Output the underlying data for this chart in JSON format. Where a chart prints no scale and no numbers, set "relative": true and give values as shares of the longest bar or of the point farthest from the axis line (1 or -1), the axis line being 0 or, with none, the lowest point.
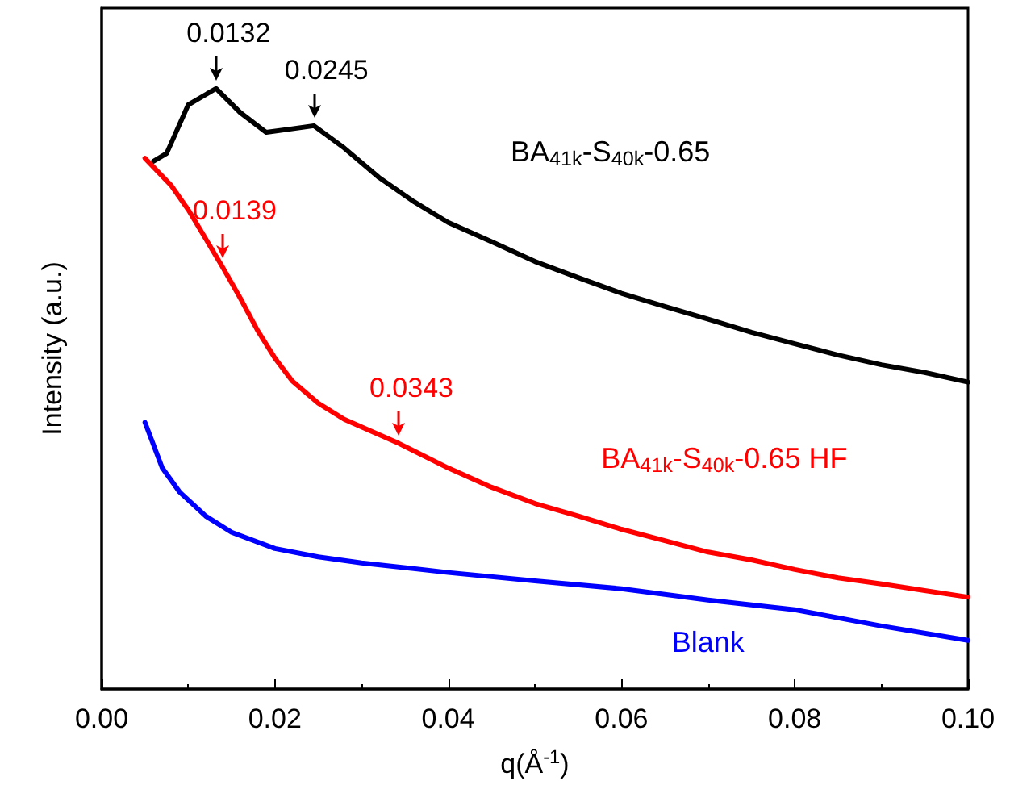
{
  "chart_data": {
    "type": "line",
    "relative": true,
    "xlabel": "q(Å$^{-1}$)",
    "ylabel": "Intensity (a.u.)",
    "xlim": [
      0,
      0.1
    ],
    "xticks": [
      {
        "value": 0,
        "label": "0.00"
      },
      {
        "value": 0.02,
        "label": "0.02"
      },
      {
        "value": 0.04,
        "label": "0.04"
      },
      {
        "value": 0.06,
        "label": "0.06"
      },
      {
        "value": 0.08,
        "label": "0.08"
      },
      {
        "value": 0.1,
        "label": "0.10"
      }
    ],
    "grid": false,
    "legend": false,
    "marker": "none",
    "line_style": "solid",
    "series": [
      {
        "name": "BA$_{41k}$-S$_{40k}$-0.65",
        "color": "#000000",
        "x": [
          0.006,
          0.0075,
          0.01,
          0.0132,
          0.016,
          0.019,
          0.022,
          0.0245,
          0.028,
          0.032,
          0.036,
          0.04,
          0.045,
          0.05,
          0.055,
          0.06,
          0.065,
          0.07,
          0.075,
          0.08,
          0.085,
          0.09,
          0.095,
          0.1
        ],
        "values": [
          0.879,
          0.892,
          0.973,
          1,
          0.96,
          0.927,
          0.933,
          0.938,
          0.901,
          0.852,
          0.812,
          0.777,
          0.745,
          0.712,
          0.685,
          0.659,
          0.637,
          0.616,
          0.594,
          0.575,
          0.556,
          0.54,
          0.527,
          0.511
        ]
      },
      {
        "name": "BA$_{41k}$-S$_{40k}$-0.65 HF",
        "color": "#ff0000",
        "x": [
          0.005,
          0.008,
          0.01,
          0.012,
          0.0139,
          0.016,
          0.018,
          0.02,
          0.022,
          0.025,
          0.028,
          0.0343,
          0.04,
          0.045,
          0.05,
          0.055,
          0.06,
          0.065,
          0.07,
          0.075,
          0.08,
          0.085,
          0.09,
          0.095,
          0.1
        ],
        "values": [
          0.884,
          0.839,
          0.798,
          0.75,
          0.704,
          0.651,
          0.597,
          0.551,
          0.513,
          0.476,
          0.449,
          0.409,
          0.368,
          0.336,
          0.309,
          0.288,
          0.266,
          0.247,
          0.228,
          0.215,
          0.199,
          0.185,
          0.175,
          0.164,
          0.153
        ]
      },
      {
        "name": "Blank",
        "color": "#0000ff",
        "x": [
          0.005,
          0.007,
          0.009,
          0.012,
          0.015,
          0.02,
          0.025,
          0.03,
          0.04,
          0.05,
          0.06,
          0.07,
          0.08,
          0.09,
          0.1
        ],
        "values": [
          0.444,
          0.368,
          0.328,
          0.288,
          0.261,
          0.234,
          0.22,
          0.21,
          0.194,
          0.18,
          0.167,
          0.148,
          0.132,
          0.105,
          0.081
        ]
      }
    ],
    "annotations": [
      {
        "text": "0.0132",
        "x": 0.0132,
        "y": 1
      },
      {
        "text": "0.0245",
        "x": 0.0245,
        "y": 0.938
      },
      {
        "text": "0.0139",
        "x": 0.0139,
        "y": 0.704
      },
      {
        "text": "0.0343",
        "x": 0.0343,
        "y": 0.409
      }
    ]
  }
}
